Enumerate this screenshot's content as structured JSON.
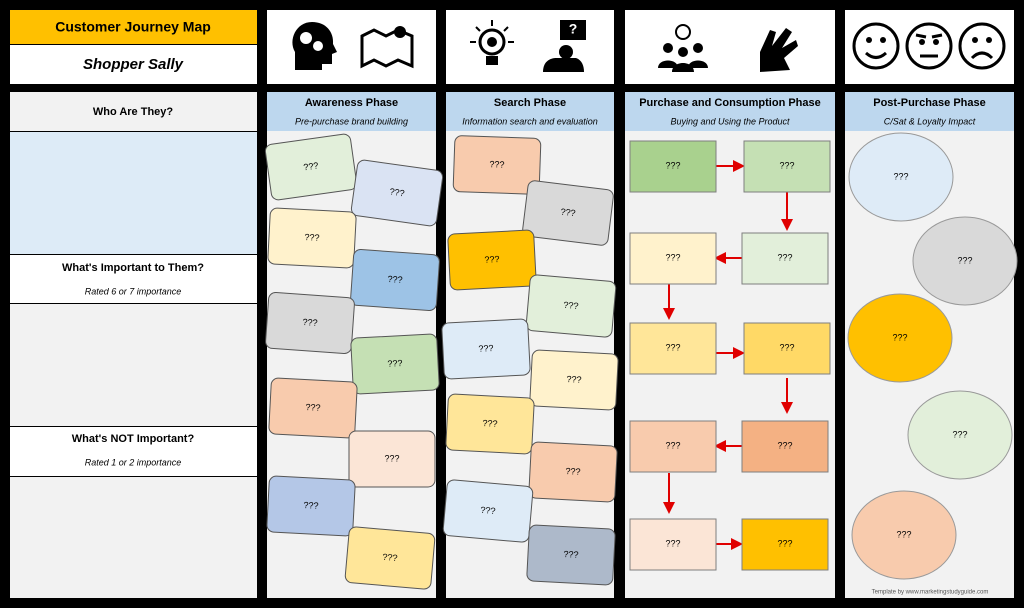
{
  "header": {
    "title": "Customer Journey Map",
    "persona": "Shopper Sally"
  },
  "rows": [
    {
      "title": "Who Are They?"
    },
    {
      "title": "What's Important to Them?",
      "subtitle": "Rated 6 or 7 importance"
    },
    {
      "title": "What's NOT Important?",
      "subtitle": "Rated 1 or 2 importance"
    }
  ],
  "phases": [
    {
      "title": "Awareness Phase",
      "subtitle": "Pre-purchase brand building",
      "cards": [
        "???",
        "???",
        "???",
        "???",
        "???",
        "???",
        "???",
        "???",
        "???",
        "???"
      ]
    },
    {
      "title": "Search Phase",
      "subtitle": "Information search and evaluation",
      "cards": [
        "???",
        "???",
        "???",
        "???",
        "???",
        "???",
        "???",
        "???",
        "???",
        "???"
      ]
    },
    {
      "title": "Purchase and Consumption Phase",
      "subtitle": "Buying and Using the Product",
      "cards": [
        "???",
        "???",
        "???",
        "???",
        "???",
        "???",
        "???",
        "???",
        "???",
        "???"
      ]
    },
    {
      "title": "Post-Purchase Phase",
      "subtitle": "C/Sat & Loyalty Impact",
      "cards": [
        "???",
        "???",
        "???",
        "???",
        "???"
      ]
    }
  ],
  "footer": "Template by www.marketingstudyguide.com"
}
